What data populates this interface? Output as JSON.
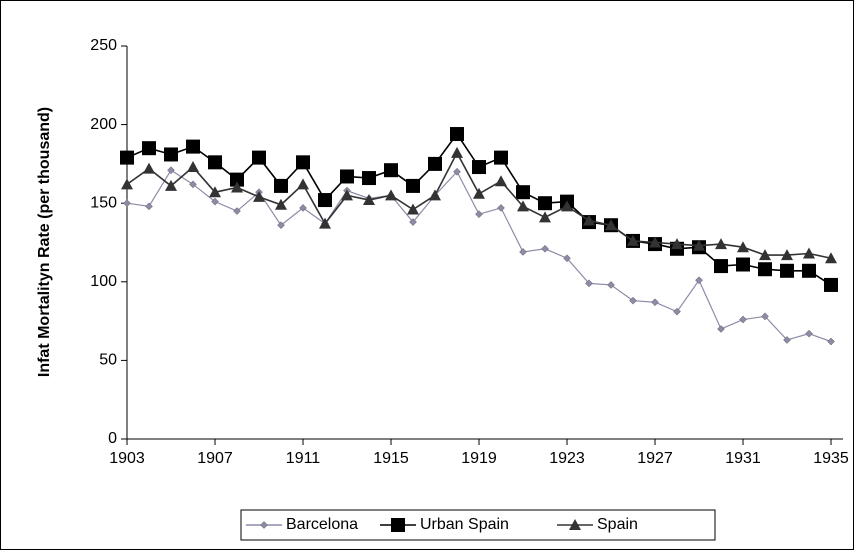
{
  "chart_data": {
    "type": "line",
    "y_label": "Infat Mortalityn Rate (per thousand)",
    "x": [
      1903,
      1904,
      1905,
      1906,
      1907,
      1908,
      1909,
      1910,
      1911,
      1912,
      1913,
      1914,
      1915,
      1916,
      1917,
      1918,
      1919,
      1920,
      1921,
      1922,
      1923,
      1924,
      1925,
      1926,
      1927,
      1928,
      1929,
      1930,
      1931,
      1932,
      1933,
      1934,
      1935
    ],
    "series": [
      {
        "name": "Barcelona",
        "color": "#8c8ca8",
        "marker": "diamond",
        "values": [
          150,
          148,
          171,
          162,
          151,
          145,
          157,
          136,
          147,
          137,
          158,
          153,
          155,
          138,
          155,
          170,
          143,
          147,
          119,
          121,
          115,
          99,
          98,
          88,
          87,
          81,
          101,
          70,
          76,
          78,
          63,
          67,
          62
        ]
      },
      {
        "name": "Urban  Spain",
        "color": "#000000",
        "marker": "square",
        "values": [
          179,
          185,
          181,
          186,
          176,
          165,
          179,
          161,
          176,
          152,
          167,
          166,
          171,
          161,
          175,
          194,
          173,
          179,
          157,
          150,
          151,
          138,
          136,
          126,
          124,
          121,
          122,
          110,
          111,
          108,
          107,
          107,
          98
        ]
      },
      {
        "name": "Spain",
        "color": "#333333",
        "marker": "triangle",
        "values": [
          162,
          172,
          161,
          173,
          157,
          160,
          154,
          149,
          162,
          137,
          155,
          152,
          155,
          146,
          155,
          182,
          156,
          164,
          148,
          141,
          148,
          139,
          136,
          126,
          125,
          124,
          123,
          124,
          122,
          117,
          117,
          118,
          115
        ]
      }
    ],
    "xlim": [
      1903,
      1935
    ],
    "xticks": [
      1903,
      1907,
      1911,
      1915,
      1919,
      1923,
      1927,
      1931,
      1935
    ],
    "ylim": [
      0,
      250
    ],
    "yticks": [
      0,
      50,
      100,
      150,
      200,
      250
    ],
    "legend": "bottom"
  }
}
